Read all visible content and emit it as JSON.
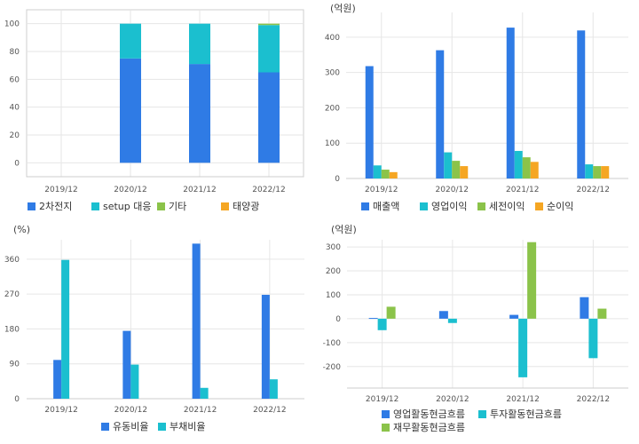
{
  "colors": {
    "blue": "#2f7be5",
    "teal": "#1bbfcf",
    "green": "#8bc34a",
    "orange": "#f5a623",
    "grid": "#e6e6e6",
    "axis": "#cccccc",
    "border": "#cfcfcf",
    "tick": "#555555"
  },
  "chart_data": [
    {
      "id": "composition",
      "type": "bar",
      "stacked": true,
      "title": "",
      "unit_label": "",
      "categories": [
        "2019/12",
        "2020/12",
        "2021/12",
        "2022/12"
      ],
      "ylim": [
        -10,
        110
      ],
      "yticks": [
        0,
        20,
        40,
        60,
        80,
        100
      ],
      "grid": true,
      "legend_position": "bottom",
      "series": [
        {
          "name": "2차전지",
          "color": "#2f7be5",
          "values": [
            null,
            75,
            71,
            65
          ]
        },
        {
          "name": "setup 대응",
          "color": "#1bbfcf",
          "values": [
            null,
            25,
            29,
            34
          ]
        },
        {
          "name": "기타",
          "color": "#8bc34a",
          "values": [
            null,
            0,
            0,
            1
          ]
        },
        {
          "name": "태양광",
          "color": "#f5a623",
          "values": [
            null,
            0,
            0,
            0
          ]
        }
      ]
    },
    {
      "id": "income",
      "type": "bar",
      "stacked": false,
      "title": "",
      "unit_label": "(억원)",
      "categories": [
        "2019/12",
        "2020/12",
        "2021/12",
        "2022/12"
      ],
      "ylim": [
        0,
        470
      ],
      "yticks": [
        0,
        100,
        200,
        300,
        400
      ],
      "grid": true,
      "legend_position": "bottom",
      "series": [
        {
          "name": "매출액",
          "color": "#2f7be5",
          "values": [
            318,
            363,
            427,
            419
          ]
        },
        {
          "name": "영업이익",
          "color": "#1bbfcf",
          "values": [
            37,
            74,
            78,
            40
          ]
        },
        {
          "name": "세전이익",
          "color": "#8bc34a",
          "values": [
            25,
            50,
            60,
            35
          ]
        },
        {
          "name": "순이익",
          "color": "#f5a623",
          "values": [
            18,
            35,
            47,
            35
          ]
        }
      ]
    },
    {
      "id": "ratios",
      "type": "bar",
      "stacked": false,
      "title": "",
      "unit_label": "(%)",
      "categories": [
        "2019/12",
        "2020/12",
        "2021/12",
        "2022/12"
      ],
      "ylim": [
        0,
        410
      ],
      "yticks": [
        0,
        90,
        180,
        270,
        360
      ],
      "grid": true,
      "legend_position": "bottom",
      "series": [
        {
          "name": "유동비율",
          "color": "#2f7be5",
          "values": [
            100,
            175,
            400,
            268
          ]
        },
        {
          "name": "부채비율",
          "color": "#1bbfcf",
          "values": [
            358,
            88,
            28,
            50
          ]
        }
      ]
    },
    {
      "id": "cashflow",
      "type": "bar",
      "stacked": false,
      "title": "",
      "unit_label": "(억원)",
      "categories": [
        "2019/12",
        "2020/12",
        "2021/12",
        "2022/12"
      ],
      "ylim": [
        -290,
        330
      ],
      "yticks": [
        -200,
        -100,
        0,
        100,
        200,
        300
      ],
      "grid": true,
      "legend_position": "bottom",
      "series": [
        {
          "name": "영업활동현금흐름",
          "color": "#2f7be5",
          "values": [
            3,
            32,
            16,
            90
          ]
        },
        {
          "name": "투자활동현금흐름",
          "color": "#1bbfcf",
          "values": [
            -48,
            -18,
            -245,
            -165
          ]
        },
        {
          "name": "재무활동현금흐름",
          "color": "#8bc34a",
          "values": [
            50,
            0,
            320,
            42
          ]
        }
      ]
    }
  ]
}
